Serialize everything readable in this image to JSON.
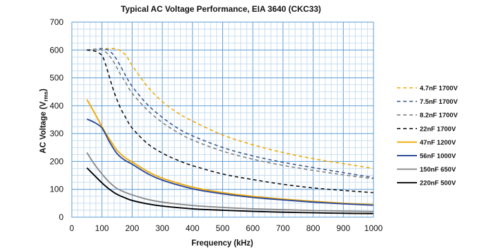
{
  "chart_data": {
    "type": "line",
    "title": "Typical AC Voltage Performance, EIA 3640 (CKC33)",
    "xlabel": "Frequency (kHz)",
    "ylabel": "AC Voltage (V",
    "ylabel_sub": "rms",
    "ylabel_end": ")",
    "xlim": [
      0,
      1000
    ],
    "ylim": [
      0,
      700
    ],
    "xticks": [
      0,
      100,
      200,
      300,
      400,
      500,
      600,
      700,
      800,
      900,
      1000
    ],
    "yticks": [
      0,
      100,
      200,
      300,
      400,
      500,
      600,
      700
    ],
    "grid": true,
    "legend_position": "right",
    "series": [
      {
        "name": "4.7nF 1700V",
        "color": "#F0A800",
        "dash": "dashed",
        "x": [
          50,
          80,
          100,
          120,
          140,
          160,
          180,
          200,
          250,
          300,
          350,
          400,
          500,
          600,
          700,
          800,
          900,
          1000
        ],
        "y": [
          600,
          602,
          604,
          605,
          605,
          598,
          580,
          545,
          470,
          415,
          375,
          345,
          295,
          260,
          232,
          210,
          192,
          175
        ]
      },
      {
        "name": "7.5nF 1700V",
        "color": "#3E5A8C",
        "dash": "dashed",
        "x": [
          50,
          80,
          100,
          120,
          140,
          160,
          180,
          200,
          250,
          300,
          350,
          400,
          500,
          600,
          700,
          800,
          900,
          1000
        ],
        "y": [
          600,
          603,
          605,
          600,
          580,
          545,
          505,
          470,
          405,
          358,
          320,
          292,
          250,
          220,
          197,
          178,
          160,
          142
        ]
      },
      {
        "name": "8.2nF 1700V",
        "color": "#7F7F7F",
        "dash": "dashed",
        "x": [
          50,
          80,
          100,
          120,
          140,
          160,
          180,
          200,
          250,
          300,
          350,
          400,
          500,
          600,
          700,
          800,
          900,
          1000
        ],
        "y": [
          600,
          603,
          600,
          585,
          555,
          515,
          480,
          445,
          385,
          340,
          305,
          277,
          237,
          208,
          186,
          168,
          152,
          138
        ]
      },
      {
        "name": "22nF 1700V",
        "color": "#111111",
        "dash": "dashed",
        "x": [
          50,
          80,
          100,
          110,
          120,
          140,
          160,
          180,
          200,
          250,
          300,
          350,
          400,
          500,
          600,
          700,
          800,
          900,
          1000
        ],
        "y": [
          600,
          595,
          580,
          555,
          520,
          450,
          395,
          355,
          320,
          265,
          230,
          205,
          185,
          155,
          135,
          118,
          105,
          96,
          88
        ]
      },
      {
        "name": "47nF 1200V",
        "color": "#F0A800",
        "dash": "solid",
        "x": [
          50,
          75,
          100,
          125,
          150,
          175,
          200,
          250,
          300,
          400,
          500,
          600,
          700,
          800,
          900,
          1000
        ],
        "y": [
          422,
          375,
          325,
          280,
          240,
          215,
          198,
          165,
          140,
          108,
          88,
          75,
          65,
          57,
          50,
          45
        ]
      },
      {
        "name": "56nF 1000V",
        "color": "#2E4A9A",
        "dash": "solid",
        "x": [
          50,
          75,
          100,
          125,
          150,
          175,
          200,
          250,
          300,
          400,
          500,
          600,
          700,
          800,
          900,
          1000
        ],
        "y": [
          352,
          340,
          320,
          270,
          228,
          205,
          190,
          157,
          133,
          102,
          84,
          71,
          62,
          54,
          48,
          43
        ]
      },
      {
        "name": "150nF 650V",
        "color": "#8A8A8A",
        "dash": "solid",
        "x": [
          50,
          75,
          100,
          125,
          150,
          175,
          200,
          250,
          300,
          400,
          500,
          600,
          700,
          800,
          900,
          1000
        ],
        "y": [
          232,
          190,
          155,
          125,
          103,
          90,
          80,
          64,
          54,
          42,
          35,
          30,
          27,
          24,
          22,
          20
        ]
      },
      {
        "name": "220nF 500V",
        "color": "#000000",
        "dash": "solid",
        "x": [
          50,
          75,
          100,
          125,
          150,
          175,
          200,
          250,
          300,
          400,
          500,
          600,
          700,
          800,
          900,
          1000
        ],
        "y": [
          177,
          150,
          123,
          100,
          82,
          70,
          60,
          48,
          40,
          30,
          25,
          21,
          18,
          16,
          14,
          13
        ]
      }
    ]
  }
}
